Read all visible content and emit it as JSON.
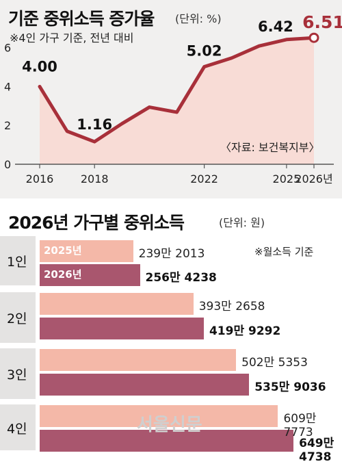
{
  "line_panel": {
    "title": "기준 중위소득 증가율",
    "unit": "(단위: %)",
    "note": "※4인 가구 기준, 전년 대비",
    "source": "〈자료: 보건복지부〉"
  },
  "bar_panel": {
    "title": "2026년 가구별 중위소득",
    "unit": "(단위: 원)",
    "note": "※월소득 기준",
    "legend_prev": "2025년",
    "legend_cur": "2026년"
  },
  "watermark": "서울신문",
  "colors": {
    "line": "#a8303a",
    "area": "#f8dcd6",
    "bar_2025": "#f4b8a8",
    "bar_2026": "#a9566e",
    "panel_bg": "#f1f0ef"
  },
  "chart_data": [
    {
      "type": "line",
      "title": "기준 중위소득 증가율",
      "xlabel": "",
      "ylabel": "",
      "x": [
        2016,
        2017,
        2018,
        2019,
        2020,
        2021,
        2022,
        2023,
        2024,
        2025,
        2026
      ],
      "x_tick_labels": [
        "2016",
        "2018",
        "2022",
        "2025",
        "2026년"
      ],
      "x_tick_values": [
        2016,
        2018,
        2022,
        2025,
        2026
      ],
      "y_tick_labels": [
        "0",
        "2",
        "4",
        "6"
      ],
      "y_tick_values": [
        0,
        2,
        4,
        6
      ],
      "ylim": [
        0,
        6.8
      ],
      "series": [
        {
          "values": [
            4.0,
            1.7,
            1.16,
            2.09,
            2.94,
            2.68,
            5.02,
            5.47,
            6.09,
            6.42,
            6.51
          ]
        }
      ],
      "data_labels": [
        {
          "x": 2016,
          "text": "4.00"
        },
        {
          "x": 2018,
          "text": "1.16"
        },
        {
          "x": 2022,
          "text": "5.02"
        },
        {
          "x": 2025,
          "text": "6.42"
        },
        {
          "x": 2026,
          "text": "6.51"
        }
      ],
      "grid": false
    },
    {
      "type": "bar",
      "title": "2026년 가구별 중위소득",
      "orientation": "horizontal",
      "categories": [
        "1인",
        "2인",
        "3인",
        "4인"
      ],
      "series": [
        {
          "name": "2025년",
          "values": [
            2392013,
            3932658,
            5025353,
            6097773
          ],
          "labels": [
            "239만 2013",
            "393만 2658",
            "502만 5353",
            "609만 7773"
          ]
        },
        {
          "name": "2026년",
          "values": [
            2564238,
            4199292,
            5359036,
            6494738
          ],
          "labels": [
            "256만 4238",
            "419만 9292",
            "535만 9036",
            "649만 4738"
          ]
        }
      ]
    }
  ]
}
